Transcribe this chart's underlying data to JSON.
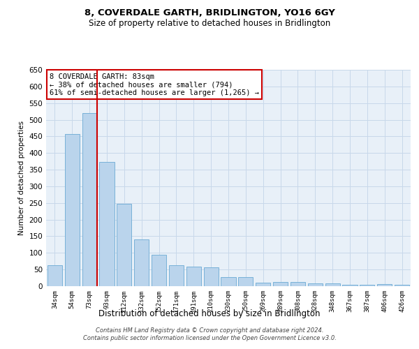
{
  "title": "8, COVERDALE GARTH, BRIDLINGTON, YO16 6GY",
  "subtitle": "Size of property relative to detached houses in Bridlington",
  "xlabel": "Distribution of detached houses by size in Bridlington",
  "ylabel": "Number of detached properties",
  "categories": [
    "34sqm",
    "54sqm",
    "73sqm",
    "93sqm",
    "112sqm",
    "132sqm",
    "152sqm",
    "171sqm",
    "191sqm",
    "210sqm",
    "230sqm",
    "250sqm",
    "269sqm",
    "289sqm",
    "308sqm",
    "328sqm",
    "348sqm",
    "367sqm",
    "387sqm",
    "406sqm",
    "426sqm"
  ],
  "values": [
    63,
    457,
    520,
    373,
    248,
    141,
    94,
    63,
    58,
    56,
    27,
    27,
    11,
    12,
    12,
    8,
    8,
    5,
    5,
    7,
    5
  ],
  "bar_color": "#bad4ec",
  "bar_edge_color": "#6aaad4",
  "grid_color": "#c8d8ea",
  "background_color": "#e8f0f8",
  "vline_color": "#cc0000",
  "vline_x_index": 2,
  "annotation_text": "8 COVERDALE GARTH: 83sqm\n← 38% of detached houses are smaller (794)\n61% of semi-detached houses are larger (1,265) →",
  "annotation_box_color": "#ffffff",
  "annotation_box_edge": "#cc0000",
  "ylim": [
    0,
    650
  ],
  "yticks": [
    0,
    50,
    100,
    150,
    200,
    250,
    300,
    350,
    400,
    450,
    500,
    550,
    600,
    650
  ],
  "footer1": "Contains HM Land Registry data © Crown copyright and database right 2024.",
  "footer2": "Contains public sector information licensed under the Open Government Licence v3.0."
}
